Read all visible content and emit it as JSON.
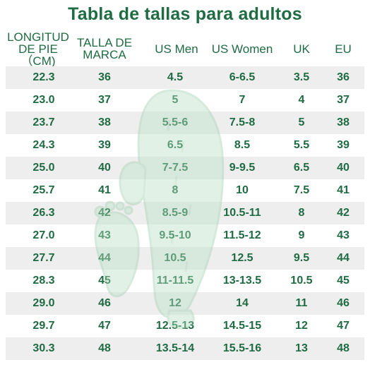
{
  "title": "Tabla de tallas para adultos",
  "columns": [
    "LONGITUD\nDE PIE（CM)",
    "TALLA DE\nMARCA",
    "US Men",
    "US Women",
    "UK",
    "EU"
  ],
  "rows": [
    [
      "22.3",
      "36",
      "4.5",
      "6-6.5",
      "3.5",
      "36"
    ],
    [
      "23.0",
      "37",
      "5",
      "7",
      "4",
      "37"
    ],
    [
      "23.7",
      "38",
      "5.5-6",
      "7.5-8",
      "5",
      "38"
    ],
    [
      "24.3",
      "39",
      "6.5",
      "8.5",
      "5.5",
      "39"
    ],
    [
      "25.0",
      "40",
      "7-7.5",
      "9-9.5",
      "6.5",
      "40"
    ],
    [
      "25.7",
      "41",
      "8",
      "10",
      "7.5",
      "41"
    ],
    [
      "26.3",
      "42",
      "8.5-9",
      "10.5-11",
      "8",
      "42"
    ],
    [
      "27.0",
      "43",
      "9.5-10",
      "11.5-12",
      "9",
      "43"
    ],
    [
      "27.7",
      "44",
      "10.5",
      "12.5",
      "9.5",
      "44"
    ],
    [
      "28.3",
      "45",
      "11-11.5",
      "13-13.5",
      "10.5",
      "45"
    ],
    [
      "29.0",
      "46",
      "12",
      "14",
      "11",
      "46"
    ],
    [
      "29.7",
      "47",
      "12.5-13",
      "14.5-15",
      "12",
      "47"
    ],
    [
      "30.3",
      "48",
      "13.5-14",
      "15.5-16",
      "13",
      "48"
    ]
  ],
  "colors": {
    "accent": "#1f6b43",
    "row_shade": "#eeeeee",
    "watermark_fill": "#b9e0c4"
  },
  "watermark_icon": "cactus-mascot-icon"
}
